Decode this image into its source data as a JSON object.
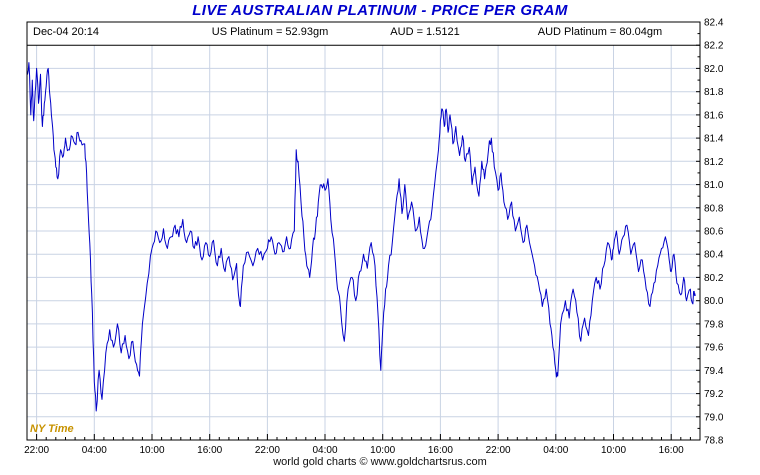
{
  "title": "LIVE AUSTRALIAN PLATINUM - PRICE PER GRAM",
  "header": {
    "timestamp": "Dec-04  20:14",
    "us_platinum": "US Platinum = 52.93gm",
    "aud_rate": "AUD = 1.5121",
    "aud_platinum": "AUD Platinum = 80.04gm"
  },
  "ny_time_label": "NY Time",
  "footer": "world gold charts © www.goldchartsrus.com",
  "colors": {
    "title": "#0000CC",
    "line": "#0000C8",
    "grid": "#C9D3E4",
    "axis": "#000000",
    "ny_time": "#C79200"
  },
  "chart_data": {
    "type": "line",
    "title": "LIVE AUSTRALIAN PLATINUM - PRICE PER GRAM",
    "x_unit": "NY Time, hours from first 22:00 tick",
    "x_range_hours": [
      -1,
      69
    ],
    "x_tick_hours": [
      0,
      6,
      12,
      18,
      24,
      30,
      36,
      42,
      48,
      54,
      60,
      66
    ],
    "x_tick_labels": [
      "22:00",
      "04:00",
      "10:00",
      "16:00",
      "22:00",
      "04:00",
      "10:00",
      "16:00",
      "22:00",
      "04:00",
      "10:00",
      "16:00"
    ],
    "ylim": [
      78.8,
      82.4
    ],
    "y_tick_step": 0.2,
    "y_tick_labels": [
      "78.8",
      "79.0",
      "79.2",
      "79.4",
      "79.6",
      "79.8",
      "80.0",
      "80.2",
      "80.4",
      "80.6",
      "80.8",
      "81.0",
      "81.2",
      "81.4",
      "81.6",
      "81.8",
      "82.0",
      "82.2",
      "82.4"
    ],
    "grid": true,
    "legend": "none",
    "series": [
      {
        "name": "AUD Platinum price per gram (AUD/gm)",
        "points": [
          [
            -1.0,
            81.95
          ],
          [
            -0.8,
            82.05
          ],
          [
            -0.6,
            81.6
          ],
          [
            -0.45,
            81.9
          ],
          [
            -0.3,
            81.55
          ],
          [
            -0.15,
            81.8
          ],
          [
            0,
            82.0
          ],
          [
            0.2,
            81.7
          ],
          [
            0.4,
            81.95
          ],
          [
            0.6,
            81.5
          ],
          [
            0.8,
            81.7
          ],
          [
            1.0,
            81.85
          ],
          [
            1.2,
            82.0
          ],
          [
            1.4,
            81.75
          ],
          [
            1.6,
            81.55
          ],
          [
            1.8,
            81.3
          ],
          [
            2.0,
            81.15
          ],
          [
            2.2,
            81.05
          ],
          [
            2.5,
            81.3
          ],
          [
            2.8,
            81.25
          ],
          [
            3.0,
            81.4
          ],
          [
            3.3,
            81.3
          ],
          [
            3.6,
            81.42
          ],
          [
            4.0,
            81.35
          ],
          [
            4.3,
            81.45
          ],
          [
            4.6,
            81.38
          ],
          [
            5.0,
            81.35
          ],
          [
            5.2,
            81.1
          ],
          [
            5.4,
            80.7
          ],
          [
            5.6,
            80.35
          ],
          [
            5.8,
            79.9
          ],
          [
            6.0,
            79.3
          ],
          [
            6.2,
            79.05
          ],
          [
            6.5,
            79.4
          ],
          [
            6.8,
            79.15
          ],
          [
            7.2,
            79.55
          ],
          [
            7.6,
            79.75
          ],
          [
            8.0,
            79.6
          ],
          [
            8.4,
            79.8
          ],
          [
            8.8,
            79.55
          ],
          [
            9.2,
            79.7
          ],
          [
            9.6,
            79.5
          ],
          [
            10.0,
            79.65
          ],
          [
            10.4,
            79.45
          ],
          [
            10.7,
            79.35
          ],
          [
            11.0,
            79.8
          ],
          [
            11.5,
            80.15
          ],
          [
            12.0,
            80.45
          ],
          [
            12.4,
            80.6
          ],
          [
            12.8,
            80.5
          ],
          [
            13.2,
            80.62
          ],
          [
            13.6,
            80.45
          ],
          [
            14.0,
            80.55
          ],
          [
            14.4,
            80.65
          ],
          [
            14.8,
            80.55
          ],
          [
            15.2,
            80.7
          ],
          [
            15.6,
            80.5
          ],
          [
            16.0,
            80.6
          ],
          [
            16.4,
            80.45
          ],
          [
            16.8,
            80.55
          ],
          [
            17.2,
            80.35
          ],
          [
            17.6,
            80.5
          ],
          [
            18.0,
            80.38
          ],
          [
            18.4,
            80.52
          ],
          [
            18.8,
            80.3
          ],
          [
            19.2,
            80.45
          ],
          [
            19.6,
            80.25
          ],
          [
            20.0,
            80.38
          ],
          [
            20.4,
            80.18
          ],
          [
            20.8,
            80.32
          ],
          [
            21.0,
            80.05
          ],
          [
            21.2,
            79.95
          ],
          [
            21.5,
            80.3
          ],
          [
            22.0,
            80.42
          ],
          [
            22.5,
            80.3
          ],
          [
            23.0,
            80.45
          ],
          [
            23.5,
            80.35
          ],
          [
            24.0,
            80.45
          ],
          [
            24.4,
            80.55
          ],
          [
            24.8,
            80.4
          ],
          [
            25.2,
            80.5
          ],
          [
            25.6,
            80.42
          ],
          [
            26.0,
            80.55
          ],
          [
            26.4,
            80.45
          ],
          [
            26.8,
            80.6
          ],
          [
            27.0,
            81.3
          ],
          [
            27.2,
            81.2
          ],
          [
            27.5,
            80.85
          ],
          [
            27.8,
            80.55
          ],
          [
            28.1,
            80.3
          ],
          [
            28.4,
            80.2
          ],
          [
            28.7,
            80.45
          ],
          [
            29.0,
            80.6
          ],
          [
            29.3,
            80.85
          ],
          [
            29.6,
            81.0
          ],
          [
            30.0,
            80.95
          ],
          [
            30.3,
            81.05
          ],
          [
            30.6,
            80.7
          ],
          [
            31.0,
            80.4
          ],
          [
            31.3,
            80.1
          ],
          [
            31.6,
            79.95
          ],
          [
            32.0,
            79.65
          ],
          [
            32.4,
            80.1
          ],
          [
            32.8,
            80.2
          ],
          [
            33.2,
            80.0
          ],
          [
            33.6,
            80.25
          ],
          [
            34.0,
            80.4
          ],
          [
            34.4,
            80.28
          ],
          [
            34.8,
            80.5
          ],
          [
            35.2,
            80.3
          ],
          [
            35.5,
            79.9
          ],
          [
            35.8,
            79.4
          ],
          [
            36.0,
            79.75
          ],
          [
            36.3,
            80.1
          ],
          [
            36.6,
            80.3
          ],
          [
            37.0,
            80.5
          ],
          [
            37.4,
            80.85
          ],
          [
            37.7,
            81.05
          ],
          [
            38.0,
            80.75
          ],
          [
            38.3,
            81.0
          ],
          [
            38.6,
            80.7
          ],
          [
            39.0,
            80.85
          ],
          [
            39.4,
            80.6
          ],
          [
            39.8,
            80.72
          ],
          [
            40.2,
            80.45
          ],
          [
            40.6,
            80.55
          ],
          [
            41.0,
            80.7
          ],
          [
            41.4,
            81.0
          ],
          [
            41.8,
            81.3
          ],
          [
            42.0,
            81.55
          ],
          [
            42.2,
            81.65
          ],
          [
            42.4,
            81.5
          ],
          [
            42.6,
            81.65
          ],
          [
            42.8,
            81.45
          ],
          [
            43.0,
            81.6
          ],
          [
            43.3,
            81.35
          ],
          [
            43.6,
            81.5
          ],
          [
            44.0,
            81.25
          ],
          [
            44.3,
            81.42
          ],
          [
            44.6,
            81.2
          ],
          [
            45.0,
            81.32
          ],
          [
            45.3,
            81.0
          ],
          [
            45.6,
            81.15
          ],
          [
            46.0,
            80.9
          ],
          [
            46.3,
            81.2
          ],
          [
            46.6,
            81.05
          ],
          [
            47.0,
            81.3
          ],
          [
            47.3,
            81.4
          ],
          [
            47.6,
            81.15
          ],
          [
            48.0,
            80.95
          ],
          [
            48.3,
            81.1
          ],
          [
            48.6,
            80.85
          ],
          [
            49.0,
            80.7
          ],
          [
            49.4,
            80.85
          ],
          [
            49.8,
            80.6
          ],
          [
            50.2,
            80.72
          ],
          [
            50.6,
            80.5
          ],
          [
            51.0,
            80.65
          ],
          [
            51.4,
            80.45
          ],
          [
            51.8,
            80.3
          ],
          [
            52.2,
            80.15
          ],
          [
            52.6,
            79.95
          ],
          [
            53.0,
            80.1
          ],
          [
            53.4,
            79.8
          ],
          [
            53.7,
            79.6
          ],
          [
            54.0,
            79.4
          ],
          [
            54.2,
            79.35
          ],
          [
            54.5,
            79.8
          ],
          [
            55.0,
            80.0
          ],
          [
            55.4,
            79.85
          ],
          [
            55.8,
            80.1
          ],
          [
            56.2,
            79.9
          ],
          [
            56.6,
            79.65
          ],
          [
            57.0,
            79.85
          ],
          [
            57.4,
            79.7
          ],
          [
            57.8,
            80.0
          ],
          [
            58.2,
            80.2
          ],
          [
            58.6,
            80.1
          ],
          [
            59.0,
            80.3
          ],
          [
            59.4,
            80.5
          ],
          [
            59.8,
            80.35
          ],
          [
            60.0,
            80.45
          ],
          [
            60.3,
            80.6
          ],
          [
            60.6,
            80.4
          ],
          [
            61.0,
            80.55
          ],
          [
            61.4,
            80.65
          ],
          [
            61.8,
            80.4
          ],
          [
            62.2,
            80.5
          ],
          [
            62.6,
            80.25
          ],
          [
            63.0,
            80.35
          ],
          [
            63.4,
            80.1
          ],
          [
            63.8,
            79.95
          ],
          [
            64.2,
            80.15
          ],
          [
            64.6,
            80.3
          ],
          [
            65.0,
            80.45
          ],
          [
            65.4,
            80.55
          ],
          [
            65.8,
            80.35
          ],
          [
            66.0,
            80.25
          ],
          [
            66.3,
            80.4
          ],
          [
            66.6,
            80.15
          ],
          [
            67.0,
            80.05
          ],
          [
            67.3,
            80.2
          ],
          [
            67.6,
            80.0
          ],
          [
            68.0,
            80.1
          ],
          [
            68.2,
            79.98
          ],
          [
            68.4,
            80.08
          ],
          [
            68.5,
            80.04
          ]
        ]
      }
    ]
  }
}
